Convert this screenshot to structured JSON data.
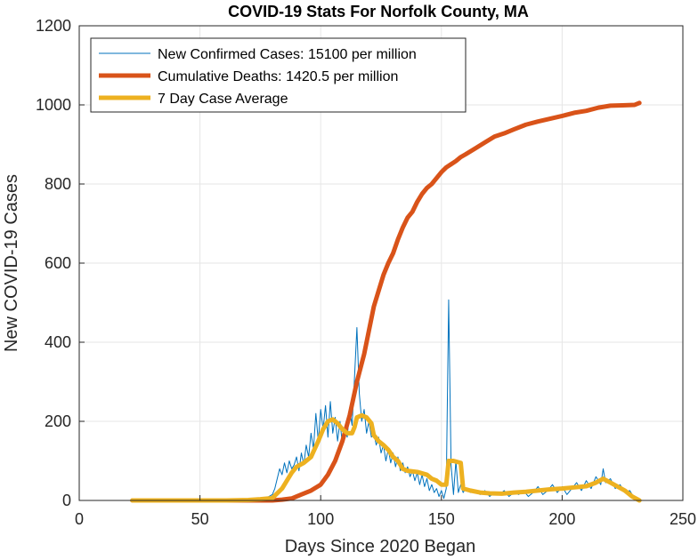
{
  "chart_data": {
    "type": "line",
    "title": "COVID-19 Stats For Norfolk County, MA",
    "xlabel": "Days Since 2020 Began",
    "ylabel": "New COVID-19 Cases",
    "xlim": [
      0,
      250
    ],
    "ylim": [
      0,
      1200
    ],
    "xticks": [
      0,
      50,
      100,
      150,
      200,
      250
    ],
    "yticks": [
      0,
      200,
      400,
      600,
      800,
      1000,
      1200
    ],
    "grid": true,
    "legend_position": "top-left",
    "series": [
      {
        "name": "New Confirmed Cases: 15100 per million",
        "color": "#0072BD",
        "line_width": 1,
        "points": [
          [
            22,
            0
          ],
          [
            40,
            0
          ],
          [
            60,
            0
          ],
          [
            68,
            0
          ],
          [
            70,
            2
          ],
          [
            72,
            0
          ],
          [
            74,
            5
          ],
          [
            76,
            3
          ],
          [
            78,
            8
          ],
          [
            80,
            15
          ],
          [
            81,
            30
          ],
          [
            82,
            55
          ],
          [
            83,
            80
          ],
          [
            84,
            65
          ],
          [
            85,
            95
          ],
          [
            86,
            70
          ],
          [
            87,
            100
          ],
          [
            88,
            80
          ],
          [
            89,
            90
          ],
          [
            90,
            110
          ],
          [
            91,
            75
          ],
          [
            92,
            120
          ],
          [
            93,
            90
          ],
          [
            94,
            140
          ],
          [
            95,
            110
          ],
          [
            96,
            170
          ],
          [
            97,
            130
          ],
          [
            98,
            220
          ],
          [
            99,
            150
          ],
          [
            100,
            230
          ],
          [
            101,
            180
          ],
          [
            102,
            240
          ],
          [
            103,
            160
          ],
          [
            104,
            250
          ],
          [
            105,
            170
          ],
          [
            106,
            210
          ],
          [
            107,
            150
          ],
          [
            108,
            200
          ],
          [
            109,
            140
          ],
          [
            110,
            180
          ],
          [
            111,
            160
          ],
          [
            112,
            230
          ],
          [
            113,
            190
          ],
          [
            114,
            310
          ],
          [
            115,
            437
          ],
          [
            116,
            270
          ],
          [
            117,
            200
          ],
          [
            118,
            230
          ],
          [
            119,
            170
          ],
          [
            120,
            200
          ],
          [
            121,
            160
          ],
          [
            122,
            170
          ],
          [
            123,
            140
          ],
          [
            124,
            160
          ],
          [
            125,
            120
          ],
          [
            126,
            140
          ],
          [
            127,
            100
          ],
          [
            128,
            130
          ],
          [
            129,
            95
          ],
          [
            130,
            120
          ],
          [
            131,
            85
          ],
          [
            132,
            110
          ],
          [
            133,
            75
          ],
          [
            134,
            95
          ],
          [
            135,
            70
          ],
          [
            136,
            85
          ],
          [
            137,
            60
          ],
          [
            138,
            75
          ],
          [
            139,
            50
          ],
          [
            140,
            70
          ],
          [
            141,
            40
          ],
          [
            142,
            65
          ],
          [
            143,
            35
          ],
          [
            144,
            55
          ],
          [
            145,
            25
          ],
          [
            146,
            40
          ],
          [
            147,
            20
          ],
          [
            148,
            30
          ],
          [
            149,
            10
          ],
          [
            150,
            25
          ],
          [
            151,
            5
          ],
          [
            152,
            30
          ],
          [
            153,
            507
          ],
          [
            154,
            90
          ],
          [
            155,
            15
          ],
          [
            156,
            100
          ],
          [
            157,
            20
          ],
          [
            158,
            40
          ],
          [
            159,
            20
          ],
          [
            160,
            30
          ],
          [
            162,
            20
          ],
          [
            164,
            25
          ],
          [
            166,
            15
          ],
          [
            168,
            25
          ],
          [
            170,
            10
          ],
          [
            172,
            20
          ],
          [
            174,
            15
          ],
          [
            176,
            25
          ],
          [
            178,
            10
          ],
          [
            180,
            20
          ],
          [
            182,
            15
          ],
          [
            184,
            25
          ],
          [
            186,
            10
          ],
          [
            188,
            20
          ],
          [
            190,
            35
          ],
          [
            192,
            15
          ],
          [
            194,
            25
          ],
          [
            196,
            40
          ],
          [
            198,
            20
          ],
          [
            200,
            35
          ],
          [
            202,
            15
          ],
          [
            204,
            30
          ],
          [
            206,
            45
          ],
          [
            208,
            25
          ],
          [
            210,
            50
          ],
          [
            212,
            30
          ],
          [
            214,
            60
          ],
          [
            216,
            40
          ],
          [
            217,
            80
          ],
          [
            218,
            45
          ],
          [
            220,
            55
          ],
          [
            222,
            30
          ],
          [
            224,
            40
          ],
          [
            226,
            20
          ],
          [
            228,
            25
          ],
          [
            230,
            5
          ],
          [
            232,
            0
          ]
        ]
      },
      {
        "name": "Cumulative Deaths: 1420.5 per million",
        "color": "#D95319",
        "line_width": 5,
        "points": [
          [
            22,
            0
          ],
          [
            60,
            0
          ],
          [
            80,
            0
          ],
          [
            84,
            2
          ],
          [
            88,
            5
          ],
          [
            92,
            15
          ],
          [
            96,
            25
          ],
          [
            100,
            40
          ],
          [
            103,
            65
          ],
          [
            106,
            100
          ],
          [
            109,
            150
          ],
          [
            112,
            215
          ],
          [
            115,
            300
          ],
          [
            118,
            370
          ],
          [
            120,
            430
          ],
          [
            122,
            490
          ],
          [
            124,
            530
          ],
          [
            126,
            570
          ],
          [
            128,
            600
          ],
          [
            130,
            625
          ],
          [
            132,
            660
          ],
          [
            134,
            690
          ],
          [
            136,
            715
          ],
          [
            138,
            730
          ],
          [
            140,
            755
          ],
          [
            142,
            775
          ],
          [
            144,
            790
          ],
          [
            146,
            800
          ],
          [
            148,
            815
          ],
          [
            150,
            830
          ],
          [
            152,
            842
          ],
          [
            154,
            850
          ],
          [
            156,
            858
          ],
          [
            158,
            868
          ],
          [
            160,
            875
          ],
          [
            164,
            890
          ],
          [
            168,
            905
          ],
          [
            172,
            920
          ],
          [
            176,
            928
          ],
          [
            180,
            938
          ],
          [
            185,
            950
          ],
          [
            190,
            958
          ],
          [
            195,
            965
          ],
          [
            200,
            972
          ],
          [
            205,
            980
          ],
          [
            210,
            985
          ],
          [
            215,
            993
          ],
          [
            220,
            998
          ],
          [
            225,
            999
          ],
          [
            230,
            1000
          ],
          [
            232,
            1005
          ]
        ]
      },
      {
        "name": "7 Day Case Average",
        "color": "#EDB120",
        "line_width": 5,
        "points": [
          [
            22,
            0
          ],
          [
            60,
            0
          ],
          [
            70,
            1
          ],
          [
            75,
            3
          ],
          [
            80,
            6
          ],
          [
            84,
            30
          ],
          [
            86,
            50
          ],
          [
            88,
            70
          ],
          [
            90,
            85
          ],
          [
            93,
            95
          ],
          [
            96,
            110
          ],
          [
            99,
            150
          ],
          [
            101,
            180
          ],
          [
            103,
            200
          ],
          [
            105,
            205
          ],
          [
            107,
            195
          ],
          [
            109,
            180
          ],
          [
            111,
            170
          ],
          [
            113,
            170
          ],
          [
            114,
            185
          ],
          [
            115,
            210
          ],
          [
            117,
            215
          ],
          [
            119,
            210
          ],
          [
            121,
            195
          ],
          [
            122,
            165
          ],
          [
            124,
            150
          ],
          [
            126,
            140
          ],
          [
            128,
            128
          ],
          [
            130,
            110
          ],
          [
            132,
            100
          ],
          [
            134,
            80
          ],
          [
            136,
            75
          ],
          [
            140,
            72
          ],
          [
            144,
            65
          ],
          [
            146,
            55
          ],
          [
            148,
            50
          ],
          [
            150,
            40
          ],
          [
            152,
            40
          ],
          [
            153,
            100
          ],
          [
            155,
            100
          ],
          [
            158,
            95
          ],
          [
            159,
            30
          ],
          [
            162,
            25
          ],
          [
            166,
            20
          ],
          [
            170,
            18
          ],
          [
            175,
            17
          ],
          [
            180,
            20
          ],
          [
            185,
            22
          ],
          [
            190,
            25
          ],
          [
            195,
            28
          ],
          [
            200,
            30
          ],
          [
            205,
            33
          ],
          [
            210,
            36
          ],
          [
            214,
            45
          ],
          [
            217,
            55
          ],
          [
            220,
            45
          ],
          [
            223,
            35
          ],
          [
            226,
            25
          ],
          [
            229,
            10
          ],
          [
            232,
            0
          ]
        ]
      }
    ]
  }
}
